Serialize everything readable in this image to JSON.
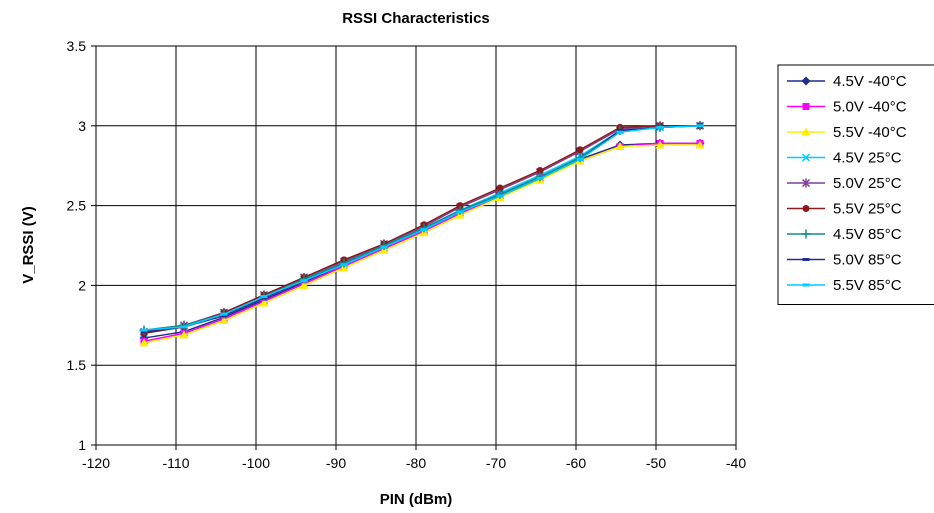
{
  "chart_data": {
    "type": "line",
    "title": "RSSI Characteristics",
    "xlabel": "PIN (dBm)",
    "ylabel": "V_RSSI (V)",
    "xlim": [
      -120,
      -40
    ],
    "ylim": [
      1,
      3.5
    ],
    "xticks": [
      "-120",
      "-110",
      "-100",
      "-90",
      "-80",
      "-70",
      "-60",
      "-50",
      "-40"
    ],
    "yticks": [
      "1",
      "1.5",
      "2",
      "2.5",
      "3",
      "3.5"
    ],
    "grid": true,
    "legend_position": "right",
    "x": [
      -114,
      -109,
      -104,
      -99,
      -94,
      -89,
      -84,
      -79,
      -74.5,
      -69.5,
      -64.5,
      -59.5,
      -54.5,
      -49.5,
      -44.5
    ],
    "series": [
      {
        "name": "4.5V -40°C",
        "color": "#1f2d8c",
        "marker": "diamond",
        "values": [
          1.67,
          1.71,
          1.8,
          1.91,
          2.02,
          2.13,
          2.24,
          2.35,
          2.46,
          2.57,
          2.68,
          2.79,
          2.88,
          2.89,
          2.89
        ]
      },
      {
        "name": "5.0V -40°C",
        "color": "#ff00ff",
        "marker": "square",
        "values": [
          1.65,
          1.7,
          1.79,
          1.9,
          2.01,
          2.12,
          2.23,
          2.34,
          2.45,
          2.56,
          2.67,
          2.78,
          2.87,
          2.89,
          2.89
        ]
      },
      {
        "name": "5.5V -40°C",
        "color": "#ffee00",
        "marker": "triangle",
        "values": [
          1.64,
          1.69,
          1.78,
          1.89,
          2.0,
          2.11,
          2.22,
          2.33,
          2.44,
          2.55,
          2.66,
          2.78,
          2.87,
          2.88,
          2.88
        ]
      },
      {
        "name": "4.5V 25°C",
        "color": "#00ccff",
        "marker": "x",
        "values": [
          1.7,
          1.74,
          1.82,
          1.93,
          2.04,
          2.14,
          2.25,
          2.36,
          2.47,
          2.58,
          2.69,
          2.81,
          2.97,
          2.99,
          3.0
        ]
      },
      {
        "name": "5.0V 25°C",
        "color": "#7f3f98",
        "marker": "star",
        "values": [
          1.71,
          1.75,
          1.83,
          1.94,
          2.05,
          2.15,
          2.26,
          2.37,
          2.49,
          2.6,
          2.71,
          2.84,
          2.98,
          3.0,
          3.0
        ]
      },
      {
        "name": "5.5V 25°C",
        "color": "#8b1a1a",
        "marker": "circle",
        "values": [
          1.7,
          1.74,
          1.83,
          1.94,
          2.05,
          2.16,
          2.26,
          2.38,
          2.5,
          2.61,
          2.72,
          2.85,
          2.99,
          3.0,
          3.0
        ]
      },
      {
        "name": "4.5V 85°C",
        "color": "#138a8a",
        "marker": "plus",
        "values": [
          1.72,
          1.75,
          1.82,
          1.93,
          2.04,
          2.14,
          2.25,
          2.36,
          2.47,
          2.57,
          2.68,
          2.8,
          2.97,
          2.99,
          3.0
        ]
      },
      {
        "name": "5.0V 85°C",
        "color": "#1f2d8c",
        "marker": "dash",
        "values": [
          1.71,
          1.74,
          1.81,
          1.92,
          2.03,
          2.13,
          2.24,
          2.35,
          2.46,
          2.56,
          2.67,
          2.79,
          2.97,
          2.99,
          3.0
        ]
      },
      {
        "name": "5.5V 85°C",
        "color": "#00ccff",
        "marker": "dash",
        "values": [
          1.72,
          1.74,
          1.82,
          1.93,
          2.03,
          2.13,
          2.24,
          2.35,
          2.46,
          2.56,
          2.67,
          2.79,
          2.96,
          2.99,
          3.0
        ]
      }
    ]
  }
}
